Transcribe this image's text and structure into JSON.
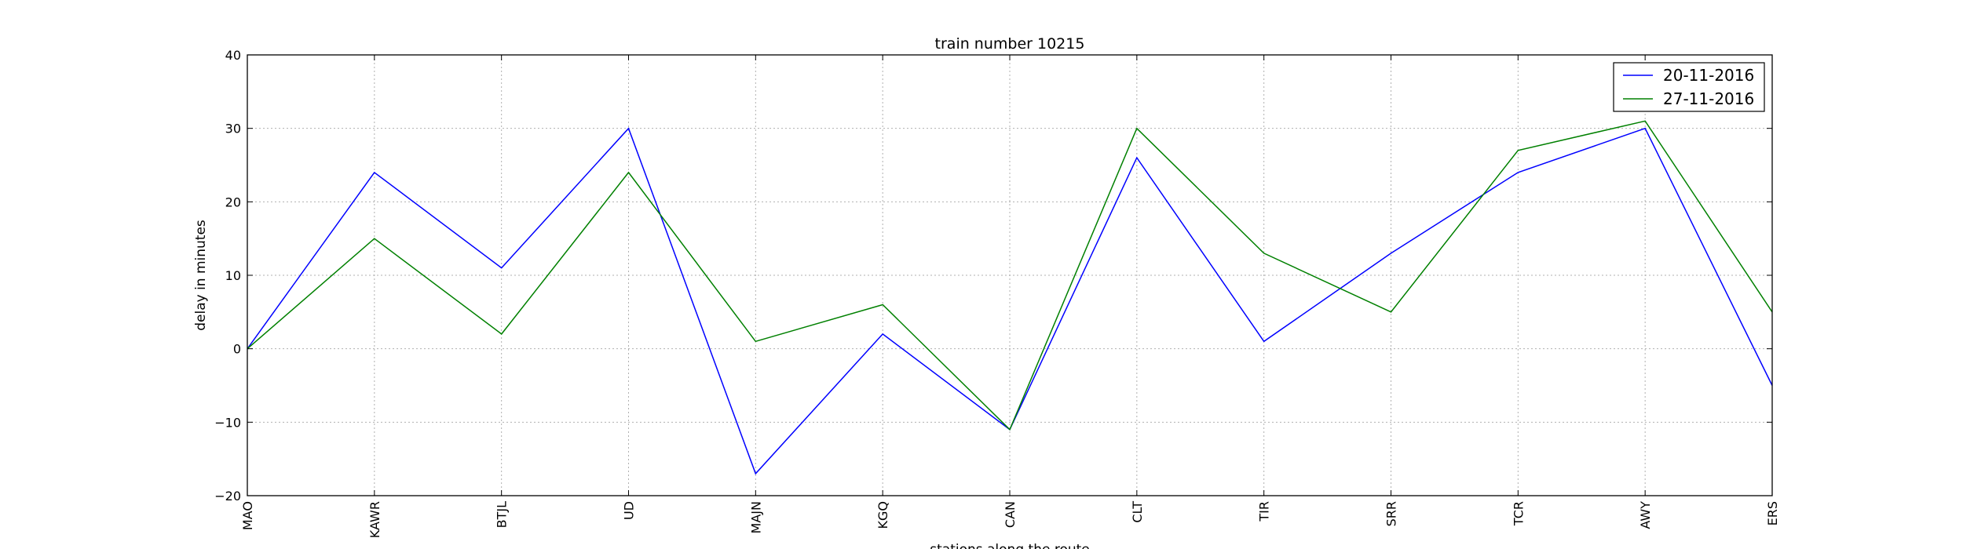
{
  "chart_data": {
    "type": "line",
    "title": "train number 10215",
    "xlabel": "stations along the route",
    "ylabel": "delay in minutes",
    "categories": [
      "MAO",
      "KAWR",
      "BTJL",
      "UD",
      "MAJN",
      "KGQ",
      "CAN",
      "CLT",
      "TIR",
      "SRR",
      "TCR",
      "AWY",
      "ERS"
    ],
    "ylim": [
      -20,
      40
    ],
    "yticks": [
      -20,
      -10,
      0,
      10,
      20,
      30,
      40
    ],
    "grid": true,
    "legend_position": "top-right",
    "series": [
      {
        "name": "20-11-2016",
        "color": "#0000ff",
        "values": [
          0,
          24,
          11,
          30,
          -17,
          2,
          -11,
          26,
          1,
          13,
          24,
          30,
          -5
        ]
      },
      {
        "name": "27-11-2016",
        "color": "#008000",
        "values": [
          0,
          15,
          2,
          24,
          1,
          6,
          -11,
          30,
          13,
          5,
          27,
          31,
          5
        ]
      }
    ]
  }
}
